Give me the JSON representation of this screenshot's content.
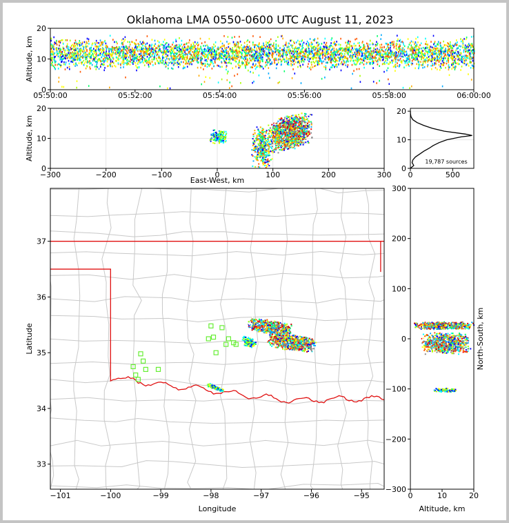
{
  "title": "Oklahoma LMA 0550-0600 UTC August 11, 2023",
  "source_count_label": "19,787 sources",
  "colors": {
    "state_border": "#e01010",
    "county_lines": "#c8c8c8",
    "stations": "#66ee33",
    "density_scale": [
      "#0000ff",
      "#00aaff",
      "#00ffff",
      "#00ff66",
      "#aaff00",
      "#ffff00",
      "#ffaa00",
      "#ff5500",
      "#ff0000",
      "#cc0000",
      "#ffffff",
      "#888888"
    ]
  },
  "chart_data": [
    {
      "id": "time-altitude",
      "type": "scatter",
      "ylabel": "Altitude, km",
      "ylim": [
        0,
        20
      ],
      "yticks": [
        "0",
        "10",
        "20"
      ],
      "xlim": [
        "05:50:00",
        "06:00:00"
      ],
      "xticks": [
        "05:50:00",
        "05:52:00",
        "05:54:00",
        "05:56:00",
        "05:58:00",
        "06:00:00"
      ],
      "main_band_altitude_km": [
        6,
        16
      ],
      "core_altitude_km": 11.5
    },
    {
      "id": "eastwest-altitude",
      "type": "heatmap",
      "xlabel": "East-West, km",
      "ylabel": "Altitude, km",
      "xlim": [
        -300,
        300
      ],
      "ylim": [
        0,
        20
      ],
      "xticks": [
        "−300",
        "−200",
        "−100",
        "0",
        "100",
        "200",
        "300"
      ],
      "yticks": [
        "0",
        "10",
        "20"
      ],
      "clusters": [
        {
          "x_range": [
            -15,
            20
          ],
          "z_range": [
            8,
            13
          ],
          "density": "low"
        },
        {
          "x_range": [
            60,
            100
          ],
          "z_range": [
            0,
            14
          ],
          "density": "medium"
        },
        {
          "x_range": [
            90,
            170
          ],
          "z_range": [
            6,
            18
          ],
          "density": "high"
        }
      ]
    },
    {
      "id": "altitude-histogram",
      "type": "line",
      "ylim": [
        0,
        21
      ],
      "xlim": [
        0,
        750
      ],
      "xticks": [
        "0",
        "500"
      ],
      "yticks": [
        "0",
        "10",
        "20"
      ],
      "peak_altitude_km": 11.5,
      "peak_sources": 730,
      "profile": [
        [
          0,
          0
        ],
        [
          1,
          40
        ],
        [
          2,
          20
        ],
        [
          3,
          30
        ],
        [
          4,
          60
        ],
        [
          5,
          110
        ],
        [
          6,
          160
        ],
        [
          7,
          220
        ],
        [
          8,
          270
        ],
        [
          9,
          340
        ],
        [
          10,
          430
        ],
        [
          11,
          600
        ],
        [
          11.5,
          730
        ],
        [
          12,
          650
        ],
        [
          13,
          400
        ],
        [
          14,
          260
        ],
        [
          15,
          160
        ],
        [
          16,
          80
        ],
        [
          17,
          30
        ],
        [
          18,
          8
        ],
        [
          19,
          2
        ],
        [
          20,
          0
        ]
      ]
    },
    {
      "id": "plan-view",
      "type": "heatmap",
      "xlabel": "Longitude",
      "ylabel": "Latitude",
      "xlim": [
        -101.2,
        -94.55
      ],
      "ylim": [
        32.55,
        37.95
      ],
      "xticks": [
        "−101",
        "−100",
        "−99",
        "−98",
        "−97",
        "−96",
        "−95"
      ],
      "yticks": [
        "33",
        "34",
        "35",
        "36",
        "37"
      ],
      "clusters": [
        {
          "lon": [
            -97.3,
            -96.4
          ],
          "lat": [
            35.35,
            35.6
          ],
          "density": "high"
        },
        {
          "lon": [
            -96.9,
            -95.9
          ],
          "lat": [
            35.05,
            35.35
          ],
          "density": "high"
        },
        {
          "lon": [
            -97.4,
            -97.1
          ],
          "lat": [
            35.1,
            35.3
          ],
          "density": "low"
        },
        {
          "lon": [
            -98.1,
            -97.75
          ],
          "lat": [
            34.35,
            34.42
          ],
          "density": "low"
        }
      ],
      "stations": [
        [
          -99.4,
          34.98
        ],
        [
          -99.55,
          34.75
        ],
        [
          -99.35,
          34.85
        ],
        [
          -99.3,
          34.7
        ],
        [
          -99.5,
          34.6
        ],
        [
          -99.45,
          34.52
        ],
        [
          -99.05,
          34.7
        ],
        [
          -98.0,
          35.48
        ],
        [
          -98.05,
          35.25
        ],
        [
          -97.95,
          35.28
        ],
        [
          -97.78,
          35.45
        ],
        [
          -97.7,
          35.15
        ],
        [
          -97.65,
          35.25
        ],
        [
          -97.55,
          35.18
        ],
        [
          -97.9,
          35.0
        ],
        [
          -97.5,
          35.15
        ]
      ]
    },
    {
      "id": "altitude-northsouth",
      "type": "heatmap",
      "xlabel": "Altitude, km",
      "ylabel": "North-South, km",
      "xlim": [
        0,
        20
      ],
      "ylim": [
        -300,
        300
      ],
      "xticks": [
        "0",
        "10",
        "20"
      ],
      "yticks": [
        "300",
        "200",
        "100",
        "0",
        "−100",
        "−200",
        "−300"
      ],
      "clusters": [
        {
          "z_range": [
            1,
            20
          ],
          "y_range": [
            20,
            35
          ],
          "density": "high"
        },
        {
          "z_range": [
            3,
            19
          ],
          "y_range": [
            -30,
            15
          ],
          "density": "high"
        },
        {
          "z_range": [
            7,
            15
          ],
          "y_range": [
            -105,
            -97
          ],
          "density": "low"
        }
      ]
    }
  ]
}
